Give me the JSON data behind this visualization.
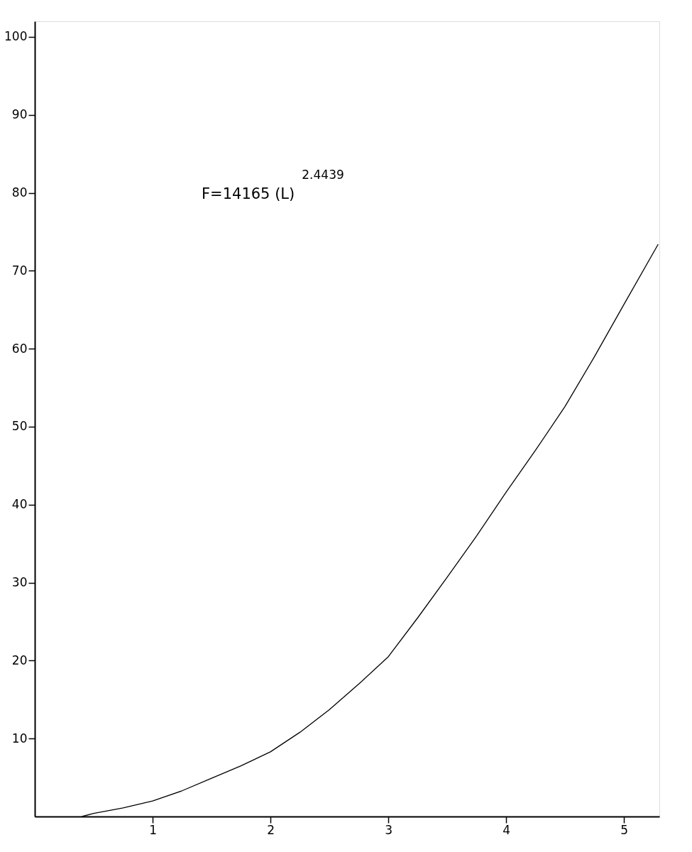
{
  "chart_data": {
    "type": "line",
    "x": [
      0.4,
      0.5,
      0.75,
      1,
      1.25,
      1.5,
      1.75,
      2,
      2.25,
      2.5,
      2.75,
      3,
      3.25,
      3.5,
      3.75,
      4,
      4.25,
      4.5,
      4.75,
      5,
      5.29
    ],
    "series": [
      {
        "color": "#000000",
        "values": [
          0,
          0.4,
          1.1,
          2.0,
          3.3,
          4.9,
          6.5,
          8.3,
          10.8,
          13.7,
          17.0,
          20.5,
          25.5,
          30.7,
          36,
          41.6,
          47,
          52.6,
          59,
          65.7,
          73.4
        ]
      }
    ],
    "xlim": [
      0,
      5.3
    ],
    "xticks": [
      1,
      2,
      3,
      4,
      5
    ],
    "ylim": [
      0,
      102
    ],
    "yticks": [
      10,
      20,
      30,
      40,
      50,
      60,
      70,
      80,
      90,
      100
    ],
    "annotations": [
      "F=14165 (L)$^{2.4439}$"
    ],
    "grid": false,
    "marker": "none",
    "line_style": "solid"
  }
}
